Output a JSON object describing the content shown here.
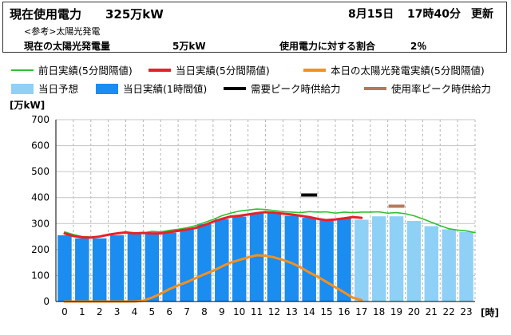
{
  "header": {
    "usage_label": "現在使用電力",
    "usage_value": "325万kW",
    "date_label": "8月15日",
    "time_label": "17時40分",
    "update_label": "更新",
    "reference_label": "<参考>太陽光発電",
    "solar_label": "現在の太陽光発電量",
    "solar_value": "5万kW",
    "ratio_label": "使用電力に対する割合",
    "ratio_value": "2％"
  },
  "legend": [
    {
      "id": "prev_day",
      "label": "前日実績(5分間隔値)",
      "symbol": "line",
      "color": "#2fc12f"
    },
    {
      "id": "today_5min",
      "label": "当日実績(5分間隔値)",
      "symbol": "line-thick",
      "color": "#e8202a"
    },
    {
      "id": "solar_today",
      "label": "本日の太陽光発電実績(5分間隔値)",
      "symbol": "line-thick",
      "color": "#f5901e"
    },
    {
      "id": "forecast",
      "label": "当日予想",
      "symbol": "box",
      "color": "#8fd0f7"
    },
    {
      "id": "today_hourly",
      "label": "当日実績(1時間値)",
      "symbol": "box",
      "color": "#1b8cf0"
    },
    {
      "id": "peak_demand",
      "label": "需要ピーク時供給力",
      "symbol": "line-thick",
      "color": "#000000"
    },
    {
      "id": "peak_usage",
      "label": "使用率ピーク時供給力",
      "symbol": "line-thick",
      "color": "#b5795a"
    }
  ],
  "chart_data": {
    "type": "bar",
    "ylabel": "[万kW]",
    "xlabel": "[時]",
    "ylim": [
      0,
      700
    ],
    "yticks": [
      0,
      100,
      200,
      300,
      400,
      500,
      600,
      700
    ],
    "categories": [
      "0",
      "1",
      "2",
      "3",
      "4",
      "5",
      "6",
      "7",
      "8",
      "9",
      "10",
      "11",
      "12",
      "13",
      "14",
      "15",
      "16",
      "17",
      "18",
      "19",
      "20",
      "21",
      "22",
      "23"
    ],
    "grid": true,
    "bars_actual": [
      255,
      243,
      243,
      255,
      262,
      260,
      265,
      278,
      298,
      317,
      327,
      338,
      340,
      330,
      322,
      318,
      320
    ],
    "bars_forecast": [
      null,
      null,
      null,
      null,
      null,
      null,
      null,
      null,
      null,
      null,
      null,
      null,
      null,
      null,
      null,
      null,
      null,
      315,
      328,
      328,
      310,
      290,
      278,
      268
    ],
    "prev_day_line": {
      "x": [
        0,
        0.5,
        1,
        1.5,
        2,
        2.5,
        3,
        3.5,
        4,
        4.5,
        5,
        5.5,
        6,
        6.5,
        7,
        7.5,
        8,
        8.5,
        9,
        9.5,
        10,
        10.5,
        11,
        11.5,
        12,
        12.5,
        13,
        13.5,
        14,
        14.5,
        15,
        15.5,
        16,
        16.5,
        17,
        17.5,
        18,
        18.5,
        19,
        19.5,
        20,
        20.5,
        21,
        21.5,
        22,
        22.5,
        23,
        23.5
      ],
      "y": [
        268,
        258,
        250,
        248,
        250,
        256,
        262,
        266,
        265,
        264,
        270,
        268,
        274,
        278,
        284,
        292,
        304,
        316,
        330,
        340,
        348,
        352,
        356,
        354,
        350,
        346,
        344,
        342,
        346,
        344,
        345,
        340,
        344,
        342,
        344,
        344,
        345,
        340,
        342,
        338,
        330,
        318,
        305,
        292,
        280,
        275,
        272,
        265
      ]
    },
    "today_line": {
      "x": [
        0,
        0.5,
        1,
        1.5,
        2,
        2.5,
        3,
        3.5,
        4,
        4.5,
        5,
        5.5,
        6,
        6.5,
        7,
        7.5,
        8,
        8.5,
        9,
        9.5,
        10,
        10.5,
        11,
        11.5,
        12,
        12.5,
        13,
        13.5,
        14,
        14.5,
        15,
        15.5,
        16,
        16.5,
        17
      ],
      "y": [
        262,
        252,
        247,
        246,
        250,
        257,
        262,
        266,
        262,
        264,
        262,
        262,
        267,
        272,
        277,
        283,
        294,
        307,
        318,
        327,
        330,
        335,
        340,
        344,
        342,
        338,
        335,
        330,
        325,
        318,
        313,
        316,
        320,
        325,
        322
      ]
    },
    "solar_line": {
      "x": [
        0,
        1,
        2,
        3,
        4,
        4.5,
        5,
        5.5,
        6,
        6.5,
        7,
        7.5,
        8,
        8.5,
        9,
        9.5,
        10,
        10.5,
        11,
        11.5,
        12,
        12.5,
        13,
        13.5,
        14,
        14.5,
        15,
        15.5,
        16,
        16.5,
        17
      ],
      "y": [
        0,
        0,
        0,
        0,
        0,
        3,
        15,
        30,
        48,
        62,
        75,
        90,
        105,
        118,
        135,
        150,
        160,
        170,
        178,
        176,
        170,
        160,
        148,
        132,
        112,
        95,
        75,
        55,
        35,
        15,
        5
      ]
    },
    "peak_demand_mark": {
      "x": 14,
      "y": 410
    },
    "peak_usage_mark": {
      "x": 19,
      "y": 367
    }
  }
}
